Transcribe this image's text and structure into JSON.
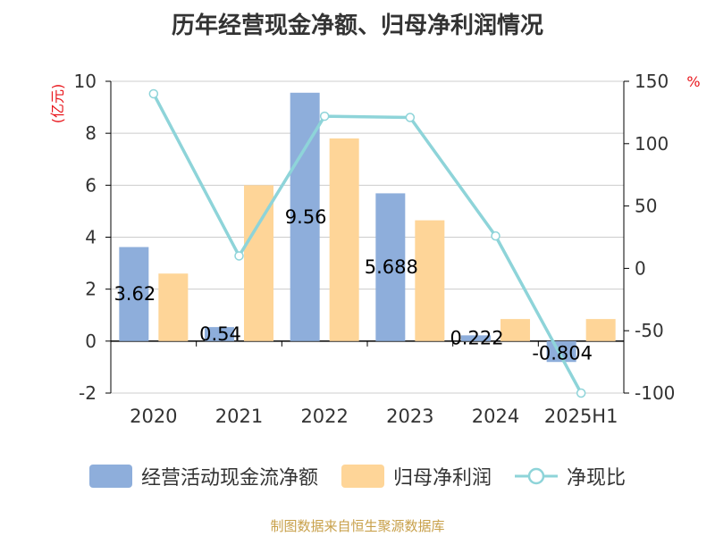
{
  "chart_data": {
    "type": "bar",
    "title": "历年经营现金净额、归母净利润情况",
    "categories": [
      "2020",
      "2021",
      "2022",
      "2023",
      "2024",
      "2025H1"
    ],
    "series": [
      {
        "name": "经营活动现金流净额",
        "type": "bar",
        "axis": "left",
        "color": "#8eaedb",
        "values": [
          3.62,
          0.54,
          9.56,
          5.688,
          0.222,
          -0.804
        ],
        "labels": [
          "3.62",
          "0.54",
          "9.56",
          "5.688",
          "0.222",
          "-0.804"
        ]
      },
      {
        "name": "归母净利润",
        "type": "bar",
        "axis": "left",
        "color": "#fed598",
        "values": [
          2.6,
          6.0,
          7.8,
          4.65,
          0.85,
          0.85
        ]
      },
      {
        "name": "净现比",
        "type": "line",
        "axis": "right",
        "color": "#8ed4d9",
        "values": [
          140,
          10,
          122,
          121,
          26,
          -100
        ]
      }
    ],
    "y_left": {
      "label": "(亿元)",
      "ylim": [
        -2,
        10
      ],
      "ticks": [
        -2,
        0,
        2,
        4,
        6,
        8,
        10
      ],
      "label_color": "#e8151b"
    },
    "y_right": {
      "label": "%",
      "ylim": [
        -100,
        150
      ],
      "ticks": [
        -100,
        -50,
        0,
        50,
        100,
        150
      ],
      "label_color": "#e8151b"
    },
    "grid": true,
    "legend_position": "bottom"
  },
  "source": {
    "text": "制图数据来自恒生聚源数据库",
    "color": "#c8a04a"
  }
}
